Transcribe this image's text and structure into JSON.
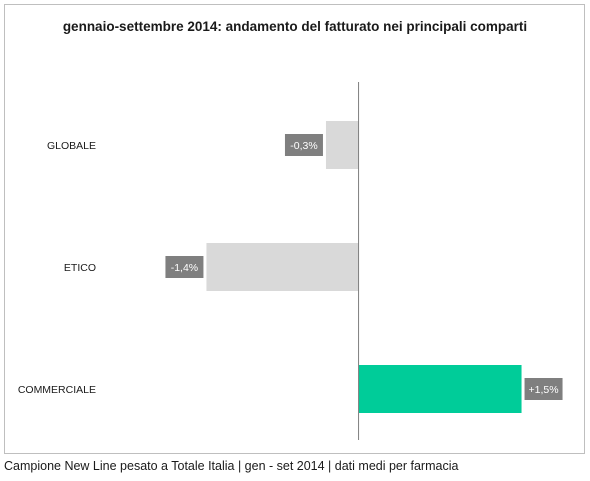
{
  "chart_data": {
    "type": "bar",
    "orientation": "horizontal",
    "title": "gennaio-settembre 2014: andamento del fatturato nei principali comparti",
    "categories": [
      "GLOBALE",
      "ETICO",
      "COMMERCIALE"
    ],
    "values": [
      -0.3,
      -1.4,
      1.5
    ],
    "data_labels": [
      "-0,3%",
      "-1,4%",
      "+1,5%"
    ],
    "xlim": [
      -3.3,
      1.9
    ],
    "grid": false,
    "legend": "none",
    "colors": {
      "negative_bar": "#d9d9d9",
      "positive_bar": "#00cc99",
      "label_box": "#7f7f7f",
      "axis": "#7f7f7f"
    }
  },
  "caption": "Campione New Line pesato a Totale Italia | gen - set 2014 | dati medi per farmacia"
}
